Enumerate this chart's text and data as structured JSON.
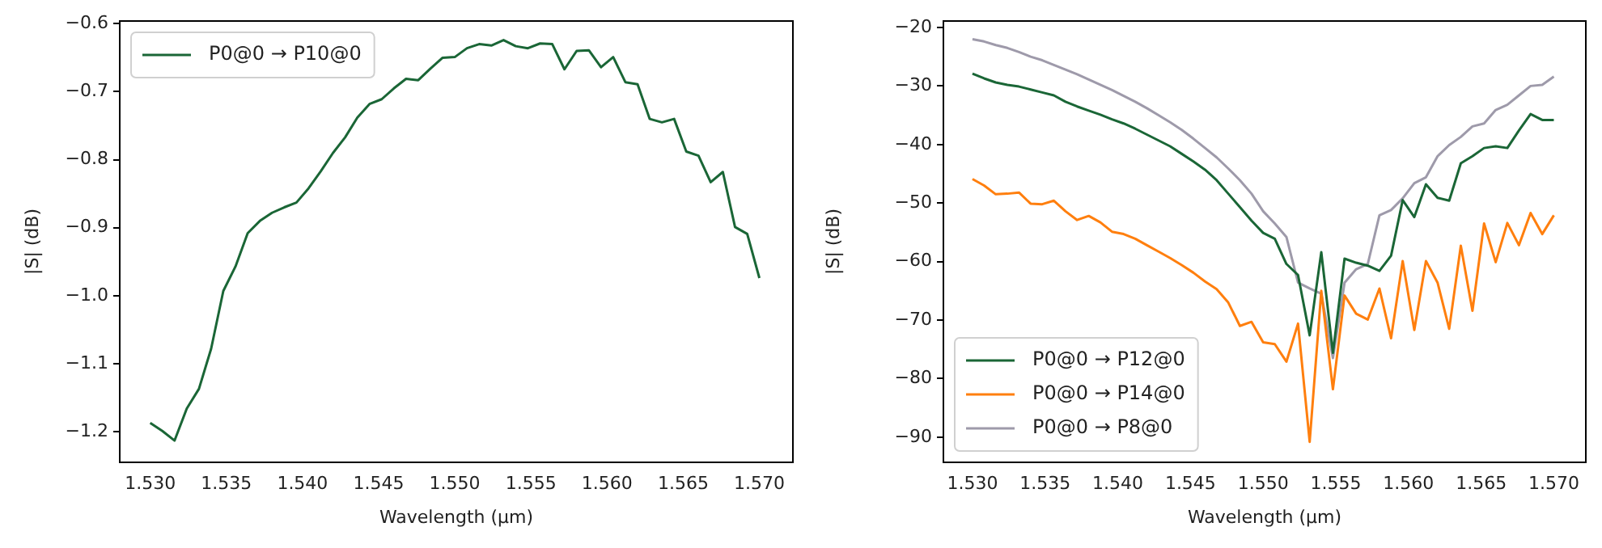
{
  "chart_data": [
    {
      "type": "line",
      "xlabel": "Wavelength (μm)",
      "ylabel": "|S| (dB)",
      "legend": "top left",
      "grid": false,
      "marker": "none",
      "line_style": "solid",
      "x": [
        1.53,
        1.5308,
        1.5316,
        1.5324,
        1.5332,
        1.534,
        1.5348,
        1.5356,
        1.5364,
        1.5372,
        1.538,
        1.5388,
        1.5396,
        1.5404,
        1.5412,
        1.542,
        1.5428,
        1.5436,
        1.5444,
        1.5452,
        1.546,
        1.5468,
        1.5476,
        1.5484,
        1.5492,
        1.55,
        1.5508,
        1.5516,
        1.5524,
        1.5532,
        1.554,
        1.5548,
        1.5556,
        1.5564,
        1.5572,
        1.558,
        1.5588,
        1.5596,
        1.5604,
        1.5612,
        1.562,
        1.5628,
        1.5636,
        1.5644,
        1.5652,
        1.566,
        1.5668,
        1.5676,
        1.5684,
        1.5692,
        1.57
      ],
      "xlim": [
        1.528,
        1.5722
      ],
      "xticks": [
        {
          "value": 1.53,
          "label": "1.530"
        },
        {
          "value": 1.535,
          "label": "1.535"
        },
        {
          "value": 1.54,
          "label": "1.540"
        },
        {
          "value": 1.545,
          "label": "1.545"
        },
        {
          "value": 1.55,
          "label": "1.550"
        },
        {
          "value": 1.555,
          "label": "1.555"
        },
        {
          "value": 1.56,
          "label": "1.560"
        },
        {
          "value": 1.565,
          "label": "1.565"
        },
        {
          "value": 1.57,
          "label": "1.570"
        }
      ],
      "ylim": [
        -1.245,
        -0.596
      ],
      "yticks": [
        {
          "value": -1.2,
          "label": "−1.2"
        },
        {
          "value": -1.1,
          "label": "−1.1"
        },
        {
          "value": -1.0,
          "label": "−1.0"
        },
        {
          "value": -0.9,
          "label": "−0.9"
        },
        {
          "value": -0.8,
          "label": "−0.8"
        },
        {
          "value": -0.7,
          "label": "−0.7"
        },
        {
          "value": -0.6,
          "label": "−0.6"
        }
      ],
      "series": [
        {
          "name": "P0@0 → P10@0",
          "color": "#1a6636",
          "values": [
            -1.187,
            -1.199,
            -1.213,
            -1.166,
            -1.137,
            -1.078,
            -0.993,
            -0.957,
            -0.908,
            -0.89,
            -0.878,
            -0.87,
            -0.863,
            -0.842,
            -0.817,
            -0.79,
            -0.767,
            -0.738,
            -0.718,
            -0.711,
            -0.695,
            -0.681,
            -0.683,
            -0.666,
            -0.65,
            -0.649,
            -0.636,
            -0.63,
            -0.632,
            -0.624,
            -0.633,
            -0.636,
            -0.629,
            -0.63,
            -0.667,
            -0.64,
            -0.639,
            -0.664,
            -0.649,
            -0.686,
            -0.689,
            -0.74,
            -0.745,
            -0.74,
            -0.788,
            -0.794,
            -0.833,
            -0.818,
            -0.899,
            -0.909,
            -0.974
          ]
        }
      ]
    },
    {
      "type": "line",
      "xlabel": "Wavelength (μm)",
      "ylabel": "|S| (dB)",
      "legend": "bottom left",
      "grid": false,
      "marker": "none",
      "line_style": "solid",
      "x": [
        1.53,
        1.5308,
        1.5316,
        1.5324,
        1.5332,
        1.534,
        1.5348,
        1.5356,
        1.5364,
        1.5372,
        1.538,
        1.5388,
        1.5396,
        1.5404,
        1.5412,
        1.542,
        1.5428,
        1.5436,
        1.5444,
        1.5452,
        1.546,
        1.5468,
        1.5476,
        1.5484,
        1.5492,
        1.55,
        1.5508,
        1.5516,
        1.5524,
        1.5532,
        1.554,
        1.5548,
        1.5556,
        1.5564,
        1.5572,
        1.558,
        1.5588,
        1.5596,
        1.5604,
        1.5612,
        1.562,
        1.5628,
        1.5636,
        1.5644,
        1.5652,
        1.566,
        1.5668,
        1.5676,
        1.5684,
        1.5692,
        1.57
      ],
      "xlim": [
        1.528,
        1.5722
      ],
      "xticks": [
        {
          "value": 1.53,
          "label": "1.530"
        },
        {
          "value": 1.535,
          "label": "1.535"
        },
        {
          "value": 1.54,
          "label": "1.540"
        },
        {
          "value": 1.545,
          "label": "1.545"
        },
        {
          "value": 1.55,
          "label": "1.550"
        },
        {
          "value": 1.555,
          "label": "1.555"
        },
        {
          "value": 1.56,
          "label": "1.560"
        },
        {
          "value": 1.565,
          "label": "1.565"
        },
        {
          "value": 1.57,
          "label": "1.570"
        }
      ],
      "ylim": [
        -94.3,
        -18.9
      ],
      "yticks": [
        {
          "value": -90,
          "label": "−90"
        },
        {
          "value": -80,
          "label": "−80"
        },
        {
          "value": -70,
          "label": "−70"
        },
        {
          "value": -60,
          "label": "−60"
        },
        {
          "value": -50,
          "label": "−50"
        },
        {
          "value": -40,
          "label": "−40"
        },
        {
          "value": -30,
          "label": "−30"
        },
        {
          "value": -20,
          "label": "−20"
        }
      ],
      "series": [
        {
          "name": "P0@0 → P12@0",
          "color": "#1a6636",
          "values": [
            -27.9,
            -28.7,
            -29.4,
            -29.8,
            -30.1,
            -30.6,
            -31.1,
            -31.6,
            -32.7,
            -33.5,
            -34.2,
            -34.9,
            -35.7,
            -36.4,
            -37.3,
            -38.3,
            -39.3,
            -40.3,
            -41.6,
            -42.9,
            -44.3,
            -46.1,
            -48.4,
            -50.7,
            -53.0,
            -55.1,
            -56.1,
            -60.4,
            -62.3,
            -72.6,
            -58.4,
            -75.6,
            -59.5,
            -60.2,
            -60.7,
            -61.6,
            -59.0,
            -49.5,
            -52.4,
            -46.8,
            -49.1,
            -49.6,
            -43.2,
            -42.0,
            -40.6,
            -40.3,
            -40.6,
            -37.6,
            -34.8,
            -35.8,
            -35.8
          ]
        },
        {
          "name": "P0@0 → P14@0",
          "color": "#ff7f0e",
          "values": [
            -45.9,
            -47.0,
            -48.5,
            -48.4,
            -48.2,
            -50.1,
            -50.2,
            -49.6,
            -51.4,
            -52.9,
            -52.2,
            -53.3,
            -54.9,
            -55.3,
            -56.1,
            -57.2,
            -58.3,
            -59.4,
            -60.6,
            -61.9,
            -63.4,
            -64.7,
            -67.0,
            -71.0,
            -70.3,
            -73.8,
            -74.1,
            -77.1,
            -70.6,
            -90.8,
            -65.0,
            -81.8,
            -65.8,
            -68.9,
            -69.9,
            -64.6,
            -73.1,
            -59.9,
            -71.7,
            -59.9,
            -63.6,
            -71.5,
            -57.3,
            -68.4,
            -53.5,
            -60.1,
            -53.4,
            -57.2,
            -51.7,
            -55.3,
            -52.1
          ]
        },
        {
          "name": "P0@0 → P8@0",
          "color": "#9e9aaa",
          "values": [
            -22.0,
            -22.4,
            -23.0,
            -23.5,
            -24.2,
            -25.0,
            -25.6,
            -26.4,
            -27.2,
            -28.0,
            -28.9,
            -29.8,
            -30.7,
            -31.7,
            -32.7,
            -33.8,
            -35.0,
            -36.2,
            -37.5,
            -39.0,
            -40.6,
            -42.2,
            -44.1,
            -46.1,
            -48.4,
            -51.4,
            -53.5,
            -55.8,
            -63.6,
            -64.6,
            -65.5,
            -76.5,
            -63.6,
            -61.3,
            -60.4,
            -52.1,
            -51.2,
            -49.2,
            -46.6,
            -45.6,
            -42.0,
            -40.1,
            -38.7,
            -36.9,
            -36.4,
            -34.1,
            -33.2,
            -31.6,
            -30.0,
            -29.8,
            -28.4
          ]
        }
      ]
    }
  ]
}
